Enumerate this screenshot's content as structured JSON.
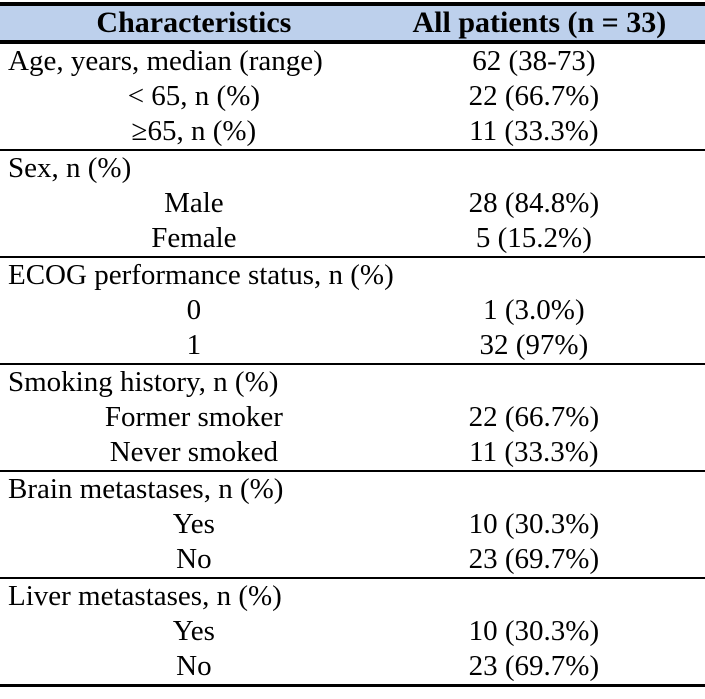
{
  "table": {
    "header": {
      "characteristics": "Characteristics",
      "all_patients": "All patients (n = 33)"
    },
    "rows": [
      {
        "type": "section",
        "label": "Age, years, median (range)",
        "value": "62 (38-73)"
      },
      {
        "type": "item",
        "label": "< 65, n (%)",
        "value": "22 (66.7%)"
      },
      {
        "type": "item",
        "label": "≥65, n (%)",
        "value": "11 (33.3%)"
      },
      {
        "type": "section",
        "label": "Sex, n (%)",
        "value": ""
      },
      {
        "type": "item",
        "label": "Male",
        "value": "28 (84.8%)"
      },
      {
        "type": "item",
        "label": "Female",
        "value": "5 (15.2%)"
      },
      {
        "type": "section",
        "label": "ECOG performance status, n (%)",
        "value": ""
      },
      {
        "type": "item",
        "label": "0",
        "value": "1 (3.0%)"
      },
      {
        "type": "item",
        "label": "1",
        "value": "32 (97%)"
      },
      {
        "type": "section",
        "label": "Smoking history, n (%)",
        "value": ""
      },
      {
        "type": "item",
        "label": "Former smoker",
        "value": "22 (66.7%)"
      },
      {
        "type": "item",
        "label": "Never smoked",
        "value": "11 (33.3%)"
      },
      {
        "type": "section",
        "label": "Brain metastases, n (%)",
        "value": ""
      },
      {
        "type": "item",
        "label": "Yes",
        "value": "10 (30.3%)"
      },
      {
        "type": "item",
        "label": "No",
        "value": "23 (69.7%)"
      },
      {
        "type": "section",
        "label": "Liver metastases, n (%)",
        "value": ""
      },
      {
        "type": "item",
        "label": "Yes",
        "value": "10 (30.3%)"
      },
      {
        "type": "item",
        "label": "No",
        "value": "23 (69.7%)"
      }
    ],
    "colors": {
      "header_background": "#bdd0ec",
      "border": "#000000",
      "text": "#000000"
    }
  }
}
